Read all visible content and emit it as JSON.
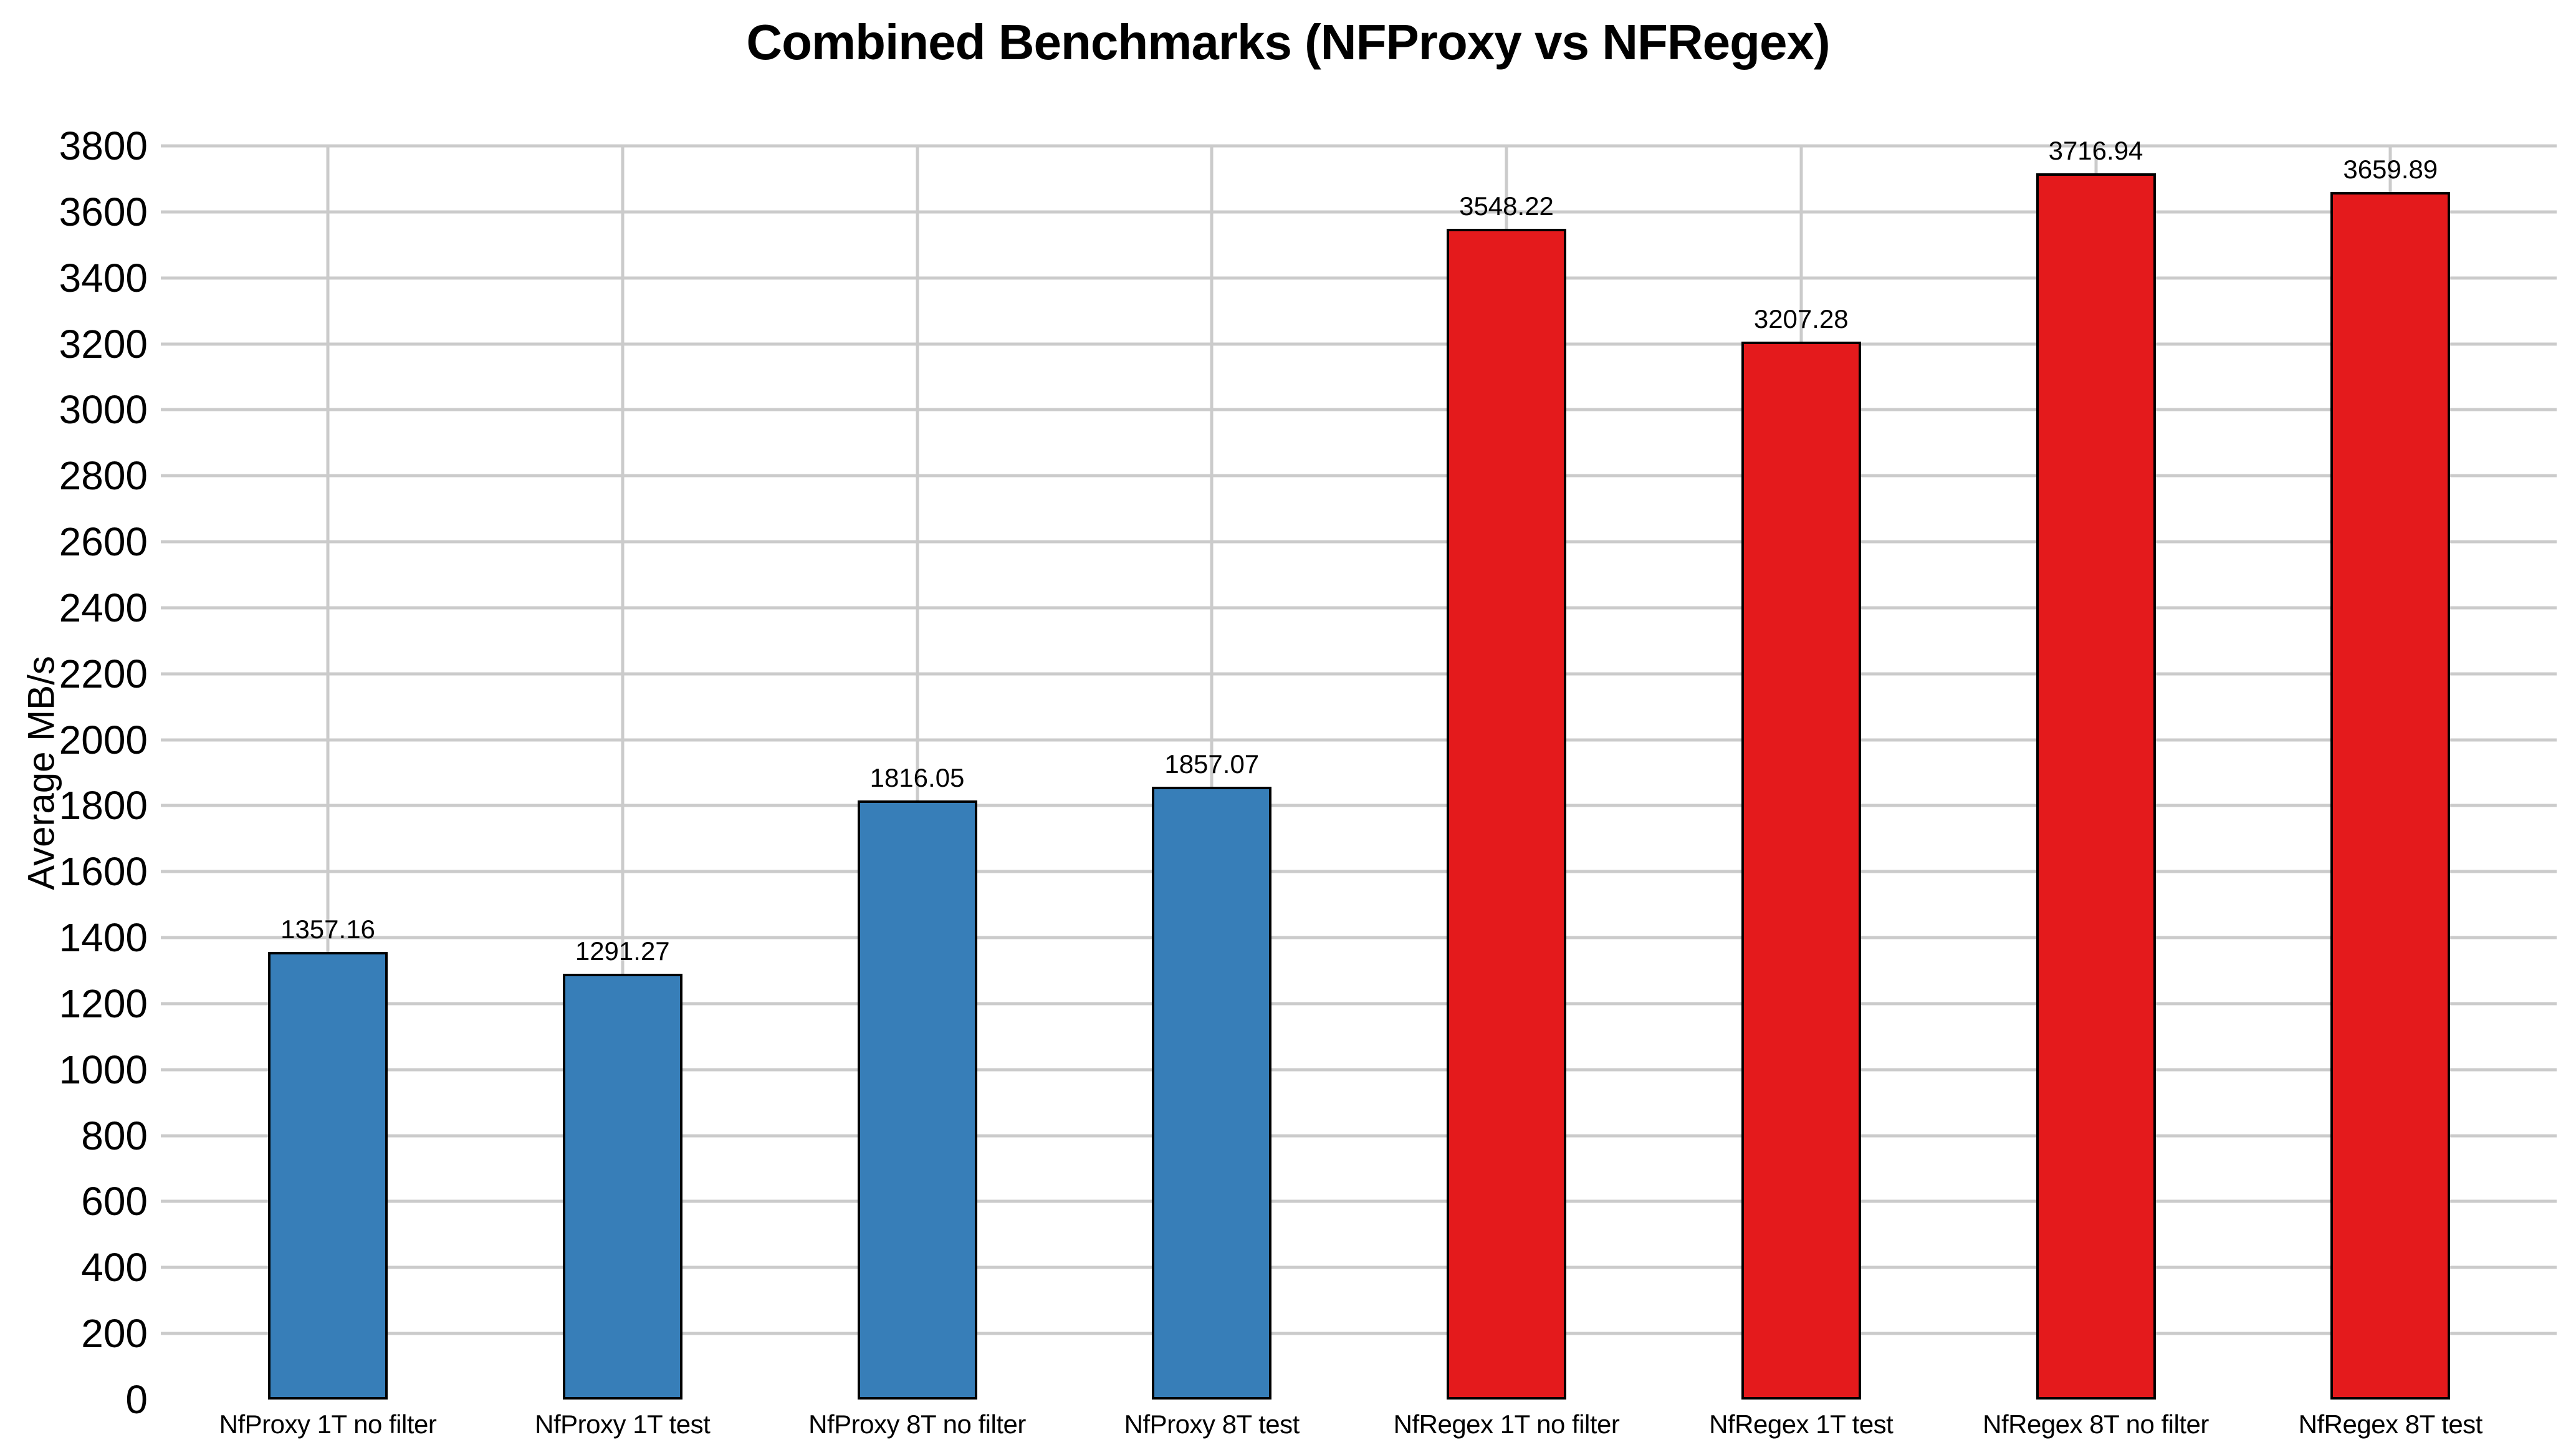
{
  "chart": {
    "title": "Combined Benchmarks (NFProxy vs NFRegex)"
  },
  "colors": {
    "background": "#ffffff",
    "text": "#000000",
    "grid": "#cbcbcb",
    "bar_edge": "#000000",
    "nfproxy": "#377eb8",
    "nfregex": "#e41a1c"
  },
  "chart_data": {
    "type": "bar",
    "title": "Combined Benchmarks (NFProxy vs NFRegex)",
    "xlabel": "",
    "ylabel": "Average MB/s",
    "ylim": [
      0,
      3800
    ],
    "ytick_step": 200,
    "grid": true,
    "legend_position": "none",
    "categories": [
      "NfProxy 1T no filter",
      "NfProxy 1T test",
      "NfProxy 8T no filter",
      "NfProxy 8T test",
      "NfRegex 1T no filter",
      "NfRegex 1T test",
      "NfRegex 8T no filter",
      "NfRegex 8T test"
    ],
    "values": [
      1357.16,
      1291.27,
      1816.05,
      1857.07,
      3548.22,
      3207.28,
      3716.94,
      3659.89
    ],
    "value_labels": [
      "1357.16",
      "1291.27",
      "1816.05",
      "1857.07",
      "3548.22",
      "3207.28",
      "3716.94",
      "3659.89"
    ],
    "bar_colors": [
      "#377eb8",
      "#377eb8",
      "#377eb8",
      "#377eb8",
      "#e41a1c",
      "#e41a1c",
      "#e41a1c",
      "#e41a1c"
    ],
    "series": [
      {
        "name": "NfProxy",
        "color": "#377eb8",
        "values": [
          1357.16,
          1291.27,
          1816.05,
          1857.07
        ]
      },
      {
        "name": "NfRegex",
        "color": "#e41a1c",
        "values": [
          3548.22,
          3207.28,
          3716.94,
          3659.89
        ]
      }
    ]
  }
}
